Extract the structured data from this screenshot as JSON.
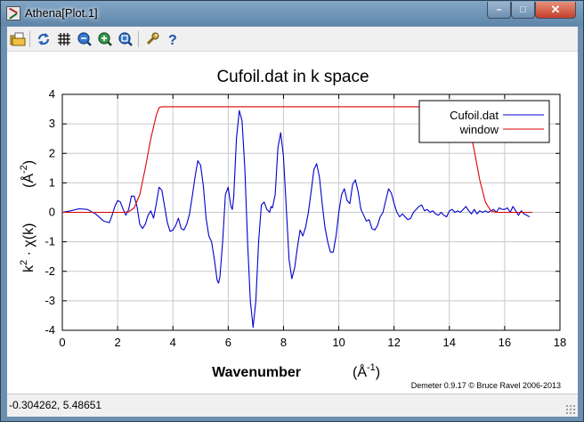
{
  "window": {
    "title": "Athena[Plot.1]",
    "controls": {
      "minimize": "–",
      "maximize": "□",
      "close": "✕"
    }
  },
  "toolbar": {
    "buttons": [
      {
        "id": "open",
        "icon": "open-folder-icon"
      },
      {
        "id": "refresh",
        "icon": "refresh-icon"
      },
      {
        "id": "grid",
        "icon": "grid-icon"
      },
      {
        "id": "zoom-in",
        "icon": "zoom-in-icon"
      },
      {
        "id": "zoom-out",
        "icon": "zoom-out-icon"
      },
      {
        "id": "zoom-reset",
        "icon": "zoom-reset-icon"
      },
      {
        "id": "settings",
        "icon": "wrench-icon"
      },
      {
        "id": "help",
        "icon": "help-icon"
      }
    ]
  },
  "chart_data": {
    "type": "line",
    "title": "Cufoil.dat in k space",
    "xlabel": "Wavenumber",
    "xlabel_unit": "(Å",
    "xlabel_unit_exp": "-1",
    "xlabel_unit_close": ")",
    "ylabel_parts": {
      "k": "k",
      "exp": "2",
      "chi": " · χ(k)",
      "unit": "(Å",
      "unit_exp": "-2",
      "unit_close": ")"
    },
    "xlim": [
      0,
      18
    ],
    "ylim": [
      -4,
      4
    ],
    "xticks": [
      0,
      2,
      4,
      6,
      8,
      10,
      12,
      14,
      16,
      18
    ],
    "yticks": [
      -4,
      -3,
      -2,
      -1,
      0,
      1,
      2,
      3,
      4
    ],
    "grid": true,
    "legend_position": "top-right",
    "series": [
      {
        "name": "Cufoil.dat",
        "color": "#0000cc",
        "points": [
          [
            0,
            0
          ],
          [
            0.3,
            0.05
          ],
          [
            0.6,
            0.12
          ],
          [
            0.9,
            0.1
          ],
          [
            1.2,
            -0.05
          ],
          [
            1.5,
            -0.3
          ],
          [
            1.7,
            -0.35
          ],
          [
            1.8,
            -0.1
          ],
          [
            1.9,
            0.2
          ],
          [
            2.0,
            0.4
          ],
          [
            2.1,
            0.35
          ],
          [
            2.2,
            0.1
          ],
          [
            2.3,
            -0.1
          ],
          [
            2.4,
            0.1
          ],
          [
            2.5,
            0.55
          ],
          [
            2.6,
            0.55
          ],
          [
            2.7,
            0.2
          ],
          [
            2.8,
            -0.4
          ],
          [
            2.9,
            -0.55
          ],
          [
            3.0,
            -0.4
          ],
          [
            3.1,
            -0.1
          ],
          [
            3.2,
            0.05
          ],
          [
            3.3,
            -0.2
          ],
          [
            3.4,
            0.3
          ],
          [
            3.5,
            0.85
          ],
          [
            3.6,
            0.75
          ],
          [
            3.7,
            0.2
          ],
          [
            3.8,
            -0.35
          ],
          [
            3.9,
            -0.65
          ],
          [
            4.0,
            -0.6
          ],
          [
            4.1,
            -0.45
          ],
          [
            4.2,
            -0.2
          ],
          [
            4.3,
            -0.55
          ],
          [
            4.4,
            -0.6
          ],
          [
            4.5,
            -0.4
          ],
          [
            4.6,
            -0.05
          ],
          [
            4.7,
            0.55
          ],
          [
            4.8,
            1.2
          ],
          [
            4.9,
            1.75
          ],
          [
            5.0,
            1.6
          ],
          [
            5.1,
            0.9
          ],
          [
            5.2,
            -0.2
          ],
          [
            5.3,
            -0.8
          ],
          [
            5.4,
            -1.0
          ],
          [
            5.5,
            -1.6
          ],
          [
            5.6,
            -2.3
          ],
          [
            5.65,
            -2.4
          ],
          [
            5.7,
            -2.2
          ],
          [
            5.8,
            -1.0
          ],
          [
            5.9,
            0.6
          ],
          [
            6.0,
            0.85
          ],
          [
            6.1,
            0.2
          ],
          [
            6.15,
            0.1
          ],
          [
            6.2,
            0.5
          ],
          [
            6.3,
            2.5
          ],
          [
            6.4,
            3.45
          ],
          [
            6.5,
            3.1
          ],
          [
            6.6,
            1.5
          ],
          [
            6.7,
            -1.0
          ],
          [
            6.8,
            -3.0
          ],
          [
            6.9,
            -3.9
          ],
          [
            7.0,
            -3.0
          ],
          [
            7.1,
            -1.0
          ],
          [
            7.2,
            0.25
          ],
          [
            7.3,
            0.35
          ],
          [
            7.4,
            0.1
          ],
          [
            7.5,
            0.0
          ],
          [
            7.55,
            0.2
          ],
          [
            7.6,
            0.15
          ],
          [
            7.7,
            0.6
          ],
          [
            7.8,
            2.2
          ],
          [
            7.9,
            2.7
          ],
          [
            8.0,
            1.9
          ],
          [
            8.1,
            0.2
          ],
          [
            8.2,
            -1.6
          ],
          [
            8.3,
            -2.25
          ],
          [
            8.4,
            -1.9
          ],
          [
            8.5,
            -1.2
          ],
          [
            8.6,
            -0.6
          ],
          [
            8.7,
            -0.8
          ],
          [
            8.8,
            -0.5
          ],
          [
            8.9,
            0.0
          ],
          [
            9.0,
            0.7
          ],
          [
            9.1,
            1.45
          ],
          [
            9.2,
            1.65
          ],
          [
            9.3,
            1.2
          ],
          [
            9.4,
            0.3
          ],
          [
            9.5,
            -0.5
          ],
          [
            9.6,
            -1.0
          ],
          [
            9.7,
            -1.35
          ],
          [
            9.8,
            -1.35
          ],
          [
            9.9,
            -0.8
          ],
          [
            10.0,
            0.0
          ],
          [
            10.1,
            0.6
          ],
          [
            10.2,
            0.8
          ],
          [
            10.3,
            0.4
          ],
          [
            10.4,
            0.3
          ],
          [
            10.5,
            0.95
          ],
          [
            10.6,
            1.1
          ],
          [
            10.7,
            0.7
          ],
          [
            10.8,
            0.1
          ],
          [
            10.9,
            -0.1
          ],
          [
            11.0,
            -0.3
          ],
          [
            11.1,
            -0.25
          ],
          [
            11.2,
            -0.55
          ],
          [
            11.3,
            -0.6
          ],
          [
            11.4,
            -0.45
          ],
          [
            11.5,
            -0.15
          ],
          [
            11.6,
            0.0
          ],
          [
            11.7,
            0.4
          ],
          [
            11.8,
            0.8
          ],
          [
            11.9,
            0.65
          ],
          [
            12.0,
            0.3
          ],
          [
            12.1,
            0.0
          ],
          [
            12.2,
            -0.15
          ],
          [
            12.3,
            -0.05
          ],
          [
            12.4,
            -0.15
          ],
          [
            12.5,
            -0.25
          ],
          [
            12.6,
            -0.2
          ],
          [
            12.7,
            0.0
          ],
          [
            12.8,
            0.1
          ],
          [
            12.9,
            0.2
          ],
          [
            13.0,
            0.25
          ],
          [
            13.1,
            0.05
          ],
          [
            13.2,
            0.1
          ],
          [
            13.3,
            0.0
          ],
          [
            13.4,
            0.05
          ],
          [
            13.5,
            -0.05
          ],
          [
            13.6,
            -0.1
          ],
          [
            13.7,
            0.0
          ],
          [
            13.8,
            -0.1
          ],
          [
            13.9,
            -0.15
          ],
          [
            14.0,
            0.05
          ],
          [
            14.1,
            0.1
          ],
          [
            14.2,
            0.0
          ],
          [
            14.3,
            0.05
          ],
          [
            14.4,
            0.0
          ],
          [
            14.5,
            0.1
          ],
          [
            14.6,
            0.2
          ],
          [
            14.7,
            0.05
          ],
          [
            14.8,
            -0.05
          ],
          [
            14.9,
            0.1
          ],
          [
            15.0,
            -0.05
          ],
          [
            15.1,
            0.05
          ],
          [
            15.2,
            0.0
          ],
          [
            15.3,
            0.05
          ],
          [
            15.4,
            0.0
          ],
          [
            15.5,
            0.05
          ],
          [
            15.6,
            0.1
          ],
          [
            15.7,
            0.0
          ],
          [
            15.8,
            0.15
          ],
          [
            15.9,
            0.1
          ],
          [
            16.0,
            0.1
          ],
          [
            16.1,
            0.15
          ],
          [
            16.2,
            0.0
          ],
          [
            16.3,
            0.2
          ],
          [
            16.4,
            0.05
          ],
          [
            16.5,
            -0.1
          ],
          [
            16.6,
            0.05
          ],
          [
            16.7,
            -0.05
          ],
          [
            16.8,
            -0.1
          ],
          [
            16.9,
            -0.15
          ]
        ]
      },
      {
        "name": "window",
        "color": "#dd0000",
        "points": [
          [
            0,
            0
          ],
          [
            2.2,
            0
          ],
          [
            2.4,
            0.02
          ],
          [
            2.6,
            0.15
          ],
          [
            2.8,
            0.6
          ],
          [
            3.0,
            1.5
          ],
          [
            3.2,
            2.5
          ],
          [
            3.4,
            3.3
          ],
          [
            3.5,
            3.55
          ],
          [
            3.6,
            3.58
          ],
          [
            14.4,
            3.58
          ],
          [
            14.5,
            3.5
          ],
          [
            14.7,
            3.0
          ],
          [
            14.9,
            2.1
          ],
          [
            15.1,
            1.1
          ],
          [
            15.3,
            0.35
          ],
          [
            15.5,
            0.05
          ],
          [
            15.7,
            0
          ],
          [
            17,
            0
          ]
        ]
      }
    ],
    "footer_credit": "Demeter 0.9.17 © Bruce Ravel 2006-2013"
  },
  "status": {
    "coordinates": "-0.304262,  5.48651"
  }
}
